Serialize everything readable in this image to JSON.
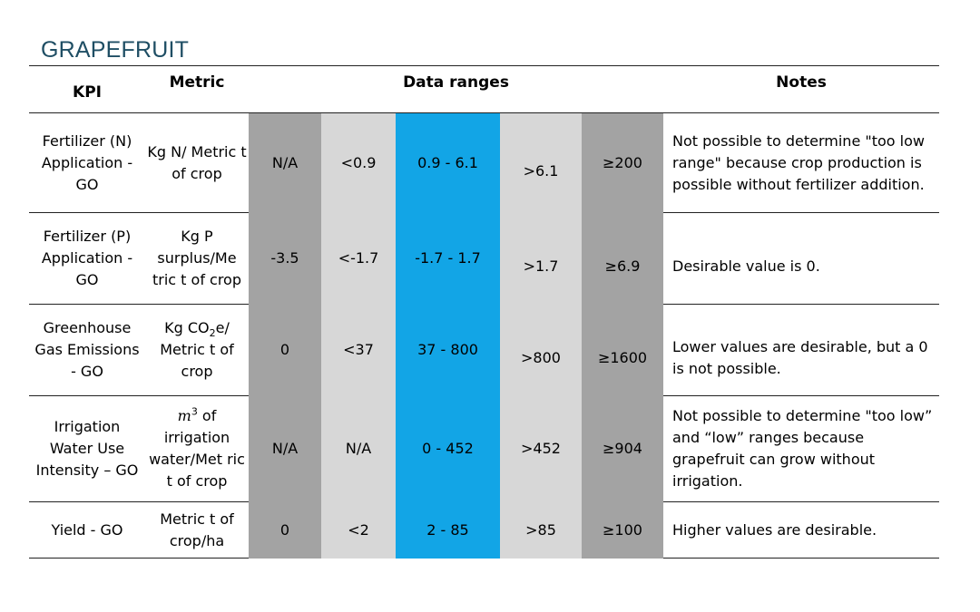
{
  "heading": "GRAPEFRUIT",
  "headers": {
    "kpi": "KPI",
    "metric": "Metric",
    "ranges": "Data ranges",
    "notes": "Notes"
  },
  "colors": {
    "dark_gray": "#a3a3a3",
    "light_gray": "#d7d7d7",
    "blue": "#12a5e6",
    "heading": "#1f4e64"
  },
  "rows": [
    {
      "kpi": "Fertilizer (N) Application - GO",
      "metric": "Kg N/ Metric t of crop",
      "r1": "N/A",
      "r2": "<0.9",
      "r3": "0.9 - 6.1",
      "r4": ">6.1",
      "r5": "≥200",
      "note": "Not possible to determine \"too low range\" because crop production is possible without fertilizer addition."
    },
    {
      "kpi": "Fertilizer (P) Application - GO",
      "metric": "Kg P surplus/Me tric t of crop",
      "r1": "-3.5",
      "r2": "<-1.7",
      "r3": "-1.7 - 1.7",
      "r4": ">1.7",
      "r5": "≥6.9",
      "note": "Desirable value is 0."
    },
    {
      "kpi": "Greenhouse Gas Emissions - GO",
      "metric_pre": "Kg CO",
      "metric_sub": "2",
      "metric_post": "e/ Metric t of crop",
      "r1": "0",
      "r2": "<37",
      "r3": "37 - 800",
      "r4": ">800",
      "r5": "≥1600",
      "note": "Lower values are desirable, but a 0 is not possible."
    },
    {
      "kpi": "Irrigation Water Use Intensity – GO",
      "metric_m": "m",
      "metric_sup": "3",
      "metric_rest_1": " of",
      "metric_rest_2": "irrigation water/Met ric t of crop",
      "r1": "N/A",
      "r2": "N/A",
      "r3": "0 - 452",
      "r4": ">452",
      "r5": "≥904",
      "note": "Not possible to determine \"too low” and “low” ranges because grapefruit can grow without irrigation."
    },
    {
      "kpi": "Yield - GO",
      "metric": "Metric t of crop/ha",
      "r1": "0",
      "r2": "<2",
      "r3": "2 - 85",
      "r4": ">85",
      "r5": "≥100",
      "note": "Higher values are desirable."
    }
  ]
}
